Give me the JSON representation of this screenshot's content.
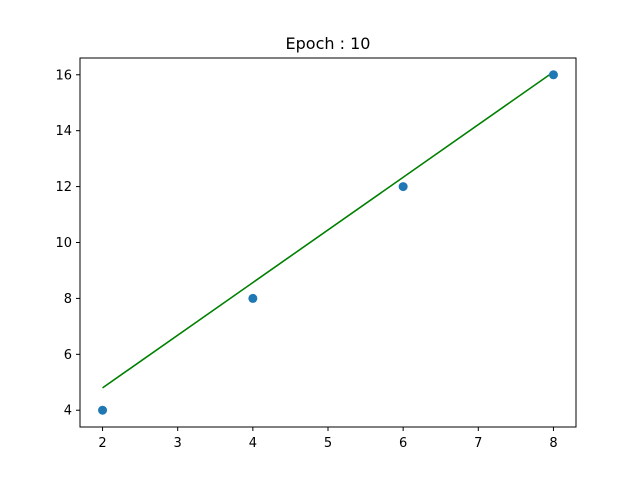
{
  "chart_data": {
    "type": "scatter",
    "title": "Epoch : 10",
    "xlabel": "",
    "ylabel": "",
    "xlim": [
      1.7,
      8.3
    ],
    "ylim": [
      3.4,
      16.6
    ],
    "xticks": [
      2,
      3,
      4,
      5,
      6,
      7,
      8
    ],
    "yticks": [
      4,
      6,
      8,
      10,
      12,
      14,
      16
    ],
    "grid": false,
    "legend": "none",
    "series": [
      {
        "kind": "scatter",
        "color": "#1f77b4",
        "points": [
          {
            "x": 2,
            "y": 4
          },
          {
            "x": 4,
            "y": 8
          },
          {
            "x": 6,
            "y": 12
          },
          {
            "x": 8,
            "y": 16
          }
        ]
      },
      {
        "kind": "line",
        "color": "#008000",
        "points": [
          {
            "x": 2,
            "y": 4.8
          },
          {
            "x": 8,
            "y": 16.1
          }
        ]
      }
    ]
  }
}
